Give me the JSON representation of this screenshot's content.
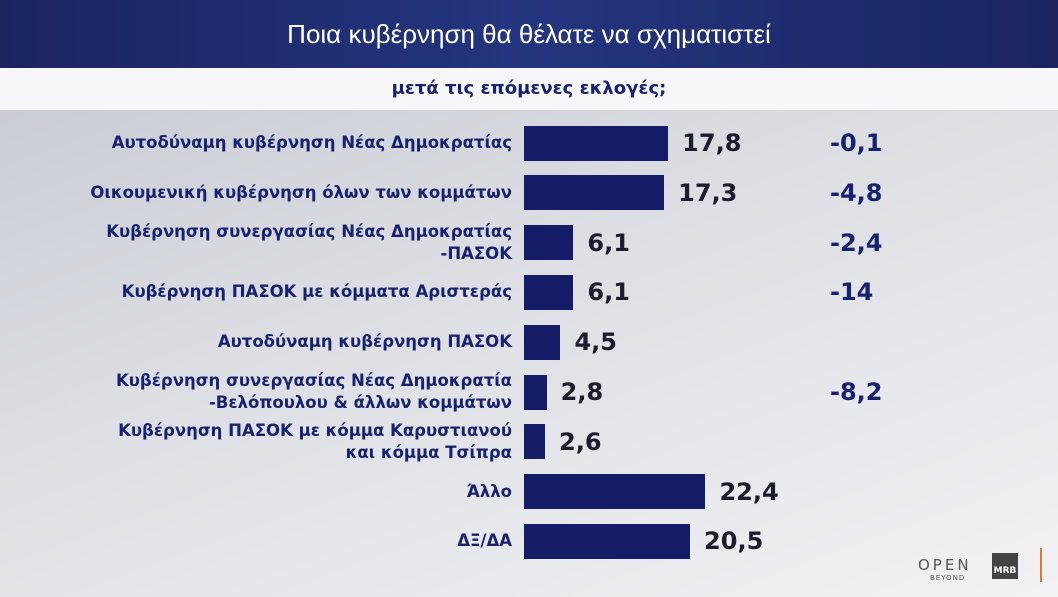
{
  "chart_data": {
    "type": "bar",
    "orientation": "horizontal",
    "title": "Ποια κυβέρνηση θα θέλατε να σχηματιστεί",
    "subtitle": "μετά τις επόμενες εκλογές;",
    "categories": [
      "Αυτοδύναμη κυβέρνηση Νέας Δημοκρατίας",
      "Οικουμενική κυβέρνηση όλων των κομμάτων",
      "Κυβέρνηση συνεργασίας Νέας Δημοκρατίας\n-ΠΑΣΟΚ",
      "Κυβέρνηση ΠΑΣΟΚ με κόμματα Αριστεράς",
      "Αυτοδύναμη κυβέρνηση ΠΑΣΟΚ",
      "Κυβέρνηση συνεργασίας Νέας Δημοκρατία\n-Βελόπουλου & άλλων κομμάτων",
      "Κυβέρνηση ΠΑΣΟΚ με κόμμα Καρυστιανού\nκαι κόμμα Τσίπρα",
      "Άλλο",
      "ΔΞ/ΔΑ"
    ],
    "series": [
      {
        "color": "#141c68",
        "values": [
          17.8,
          17.3,
          6.1,
          6.1,
          4.5,
          2.8,
          2.6,
          22.4,
          20.5
        ],
        "value_labels": [
          "17,8",
          "17,3",
          "6,1",
          "6,1",
          "4,5",
          "2,8",
          "2,6",
          "22,4",
          "20,5"
        ]
      },
      {
        "color": "#17226e",
        "values": [
          -0.1,
          -4.8,
          -2.4,
          -14,
          null,
          -8.2,
          null,
          null,
          null
        ],
        "value_labels": [
          "-0,1",
          "-4,8",
          "-2,4",
          "-14",
          null,
          "-8,2",
          null,
          null,
          null
        ]
      }
    ]
  },
  "footer": {
    "channel": "OPEN",
    "tagline": "BEYOND",
    "pollster": "MRB"
  }
}
